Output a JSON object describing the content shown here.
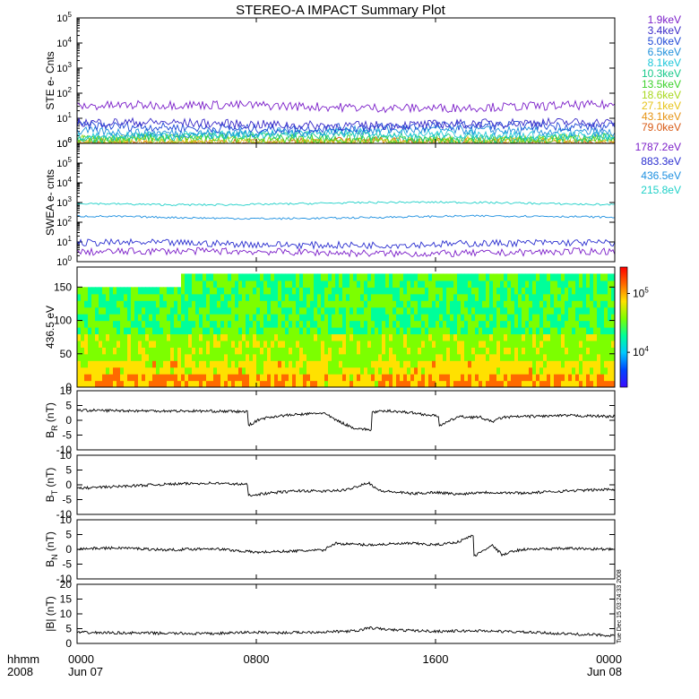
{
  "title": "STEREO-A IMPACT Summary Plot",
  "colors": {
    "ste": [
      "#7b1ec9",
      "#3a2ac8",
      "#1d47d6",
      "#1e8fdb",
      "#1cc7d9",
      "#18c98a",
      "#3cd22b",
      "#a8d81e",
      "#e6c318",
      "#e69312",
      "#d85a14"
    ],
    "swea": [
      "#7b1ec9",
      "#2b2fd0",
      "#1e90e0",
      "#1fd0c8"
    ],
    "colorbar": [
      "#3b0bff",
      "#0045ff",
      "#00c8ff",
      "#00ff9a",
      "#7cff00",
      "#ffe100",
      "#ff6a00",
      "#ff0000"
    ]
  },
  "chart_data": [
    {
      "id": "ste",
      "type": "line",
      "ylabel": "STE e- Cnts",
      "yscale": "log",
      "ylim": [
        1,
        100000
      ],
      "yticks": [
        "10^0",
        "10^1",
        "10^2",
        "10^3",
        "10^4",
        "10^5"
      ],
      "series": [
        {
          "name": "1.9keV",
          "level": 30
        },
        {
          "name": "3.4keV",
          "level": 6
        },
        {
          "name": "5.0keV",
          "level": 4.5
        },
        {
          "name": "6.5keV",
          "level": 3
        },
        {
          "name": "8.1keV",
          "level": 2.3
        },
        {
          "name": "10.3keV",
          "level": 1.8
        },
        {
          "name": "13.5keV",
          "level": 1.5
        },
        {
          "name": "18.6keV",
          "level": 1.3
        },
        {
          "name": "27.1keV",
          "level": 1.15
        },
        {
          "name": "43.1keV",
          "level": 1.08
        },
        {
          "name": "79.0keV",
          "level": 1.03
        }
      ]
    },
    {
      "id": "swea",
      "type": "line",
      "ylabel": "SWEA e- cnts",
      "yscale": "log",
      "ylim": [
        1,
        1000000
      ],
      "yticks": [
        "10^0",
        "10^1",
        "10^2",
        "10^3",
        "10^4",
        "10^5",
        "10^6"
      ],
      "series": [
        {
          "name": "1787.2eV",
          "level": 3
        },
        {
          "name": "883.3eV",
          "level": 8
        },
        {
          "name": "436.5eV",
          "level": 180
        },
        {
          "name": "215.8eV",
          "level": 900
        }
      ]
    },
    {
      "id": "pad",
      "type": "heatmap",
      "ylabel": "436.5 eV",
      "ylim": [
        0,
        180
      ],
      "yticks": [
        "0",
        "50",
        "100",
        "150"
      ],
      "colorbar_ticks": [
        "10^4",
        "10^5"
      ]
    },
    {
      "id": "br",
      "type": "line",
      "ylabel": "B_R (nT)",
      "ylim": [
        -10,
        10
      ],
      "yticks": [
        "10",
        "5",
        "0",
        "-5",
        "-10"
      ],
      "points": [
        [
          0,
          3.4
        ],
        [
          3,
          3.2
        ],
        [
          6,
          3.1
        ],
        [
          7.6,
          2.9
        ],
        [
          7.7,
          -1.5
        ],
        [
          8.2,
          0.5
        ],
        [
          9,
          1.5
        ],
        [
          10,
          2.0
        ],
        [
          11,
          2.5
        ],
        [
          11.5,
          0.3
        ],
        [
          12.3,
          -2.5
        ],
        [
          13,
          -3.2
        ],
        [
          13.3,
          2.8
        ],
        [
          14,
          3.2
        ],
        [
          15,
          2.5
        ],
        [
          16,
          1.5
        ],
        [
          16.3,
          -1.5
        ],
        [
          17,
          1.2
        ],
        [
          18,
          1.0
        ],
        [
          18.5,
          -0.5
        ],
        [
          19,
          1.0
        ],
        [
          20,
          1.3
        ],
        [
          22,
          1.6
        ],
        [
          24,
          1.3
        ]
      ]
    },
    {
      "id": "bt",
      "type": "line",
      "ylabel": "B_T (nT)",
      "ylim": [
        -10,
        10
      ],
      "yticks": [
        "10",
        "5",
        "0",
        "-5",
        "-10"
      ],
      "points": [
        [
          0,
          -1.2
        ],
        [
          2,
          -0.5
        ],
        [
          4,
          0.2
        ],
        [
          6,
          0.6
        ],
        [
          7.6,
          0.1
        ],
        [
          7.7,
          -3.5
        ],
        [
          9,
          -2.5
        ],
        [
          10,
          -2.0
        ],
        [
          11,
          -2.2
        ],
        [
          12,
          -1.8
        ],
        [
          13,
          0.8
        ],
        [
          13.5,
          -2.0
        ],
        [
          15,
          -3.0
        ],
        [
          16,
          -2.5
        ],
        [
          17,
          -3.2
        ],
        [
          18,
          -2.5
        ],
        [
          20,
          -2.8
        ],
        [
          22,
          -2.0
        ],
        [
          24,
          -1.5
        ]
      ]
    },
    {
      "id": "bn",
      "type": "line",
      "ylabel": "B_N (nT)",
      "ylim": [
        -10,
        10
      ],
      "yticks": [
        "10",
        "5",
        "0",
        "-5",
        "-10"
      ],
      "points": [
        [
          0,
          0.2
        ],
        [
          2,
          0.5
        ],
        [
          4,
          -0.2
        ],
        [
          6,
          0.3
        ],
        [
          8,
          -1.0
        ],
        [
          10,
          -0.5
        ],
        [
          11,
          -0.3
        ],
        [
          11.5,
          2.0
        ],
        [
          13,
          1.5
        ],
        [
          14,
          1.8
        ],
        [
          15,
          2.0
        ],
        [
          16,
          1.5
        ],
        [
          17,
          2.5
        ],
        [
          17.6,
          4.5
        ],
        [
          17.8,
          -2.0
        ],
        [
          18.5,
          1.5
        ],
        [
          19,
          -2.0
        ],
        [
          19.5,
          -0.5
        ],
        [
          20,
          0.0
        ],
        [
          22,
          0.3
        ],
        [
          24,
          0.0
        ]
      ]
    },
    {
      "id": "bmag",
      "type": "line",
      "ylabel": "|B| (nT)",
      "ylim": [
        0,
        20
      ],
      "yticks": [
        "20",
        "15",
        "10",
        "5",
        "0"
      ],
      "points": [
        [
          0,
          3.7
        ],
        [
          3,
          3.5
        ],
        [
          6,
          3.3
        ],
        [
          7.7,
          3.8
        ],
        [
          9,
          3.6
        ],
        [
          11,
          3.9
        ],
        [
          12.5,
          4.2
        ],
        [
          13,
          5.3
        ],
        [
          14,
          4.6
        ],
        [
          16,
          4.1
        ],
        [
          18,
          4.3
        ],
        [
          20,
          3.8
        ],
        [
          22,
          3.2
        ],
        [
          24,
          2.7
        ]
      ]
    }
  ],
  "legend_ste": [
    "1.9keV",
    "3.4keV",
    "5.0keV",
    "6.5keV",
    "8.1keV",
    "10.3keV",
    "13.5keV",
    "18.6keV",
    "27.1keV",
    "43.1keV",
    "79.0keV"
  ],
  "legend_swea": [
    "1787.2eV",
    "883.3eV",
    "436.5eV",
    "215.8eV"
  ],
  "xaxis": {
    "row1_label": "hhmm",
    "row2_label": "2008",
    "ticks": [
      {
        "hour": 0,
        "top": "0000",
        "bottom": "Jun 07"
      },
      {
        "hour": 8,
        "top": "0800",
        "bottom": ""
      },
      {
        "hour": 16,
        "top": "1600",
        "bottom": ""
      },
      {
        "hour": 24,
        "top": "0000",
        "bottom": "Jun 08"
      }
    ]
  },
  "side_stamp": "Tue Dec 15 03:24:33 2008"
}
